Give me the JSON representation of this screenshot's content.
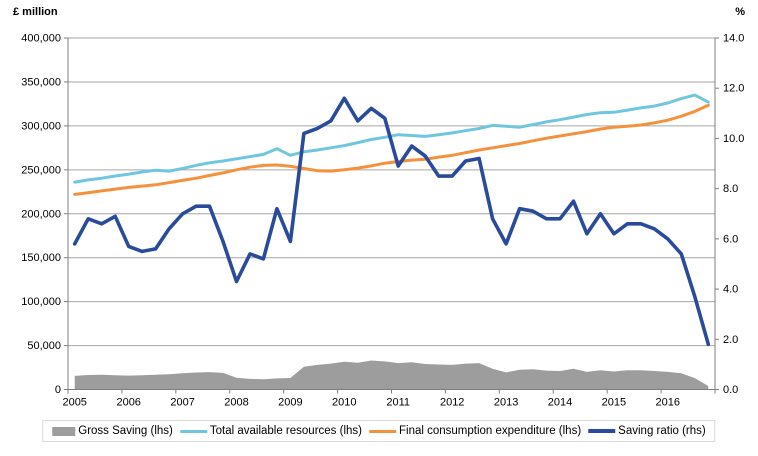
{
  "chart_data": {
    "type": "combo-line-area",
    "title": "",
    "x_axis": {
      "year_labels": [
        "2005",
        "2006",
        "2007",
        "2008",
        "2009",
        "2010",
        "2011",
        "2012",
        "2013",
        "2014",
        "2015",
        "2016"
      ],
      "points_per_year": 4
    },
    "left_axis": {
      "title": "£ million",
      "min": 0,
      "max": 400000,
      "step": 50000,
      "tick_labels": [
        "400,000",
        "350,000",
        "300,000",
        "250,000",
        "200,000",
        "150,000",
        "100,000",
        "50,000",
        "0"
      ]
    },
    "right_axis": {
      "title": "%",
      "min": 0,
      "max": 14,
      "step": 2,
      "tick_labels": [
        "14.0",
        "12.0",
        "10.0",
        "8.0",
        "6.0",
        "4.0",
        "2.0",
        "0.0"
      ]
    },
    "grid": true,
    "legend_position": "bottom",
    "colors": {
      "gridline": "#a6a6a6",
      "axis_line": "#7f7f7f",
      "text": "#000000",
      "legend_border": "#d9d9d9"
    },
    "series": [
      {
        "name": "Gross Saving (lhs)",
        "axis": "left",
        "style": "area",
        "color": "#9d9d9d",
        "values": [
          15500,
          16500,
          16800,
          16300,
          15800,
          16300,
          16800,
          17400,
          18500,
          19400,
          19800,
          18900,
          13400,
          12100,
          11600,
          12600,
          13100,
          26000,
          28000,
          29500,
          31500,
          30500,
          33000,
          32000,
          30000,
          31000,
          29000,
          28500,
          28000,
          29500,
          30000,
          23500,
          19500,
          22500,
          23000,
          21500,
          21000,
          23500,
          20000,
          22000,
          20500,
          22000,
          22000,
          21000,
          20000,
          18500,
          13000,
          4000
        ]
      },
      {
        "name": "Total available resources (lhs)",
        "axis": "left",
        "style": "line",
        "color": "#70c6df",
        "values": [
          236000,
          238500,
          240500,
          243000,
          245000,
          247500,
          249500,
          248500,
          251500,
          255000,
          258000,
          260000,
          262500,
          265000,
          267500,
          274000,
          266500,
          270500,
          272500,
          275000,
          277500,
          281000,
          284500,
          287000,
          290000,
          289000,
          288000,
          290000,
          292000,
          294500,
          297000,
          300500,
          299500,
          298500,
          301500,
          304500,
          307000,
          310000,
          313000,
          315000,
          315500,
          318000,
          320500,
          322500,
          326000,
          331000,
          335000,
          327000
        ]
      },
      {
        "name": "Final consumption expenditure (lhs)",
        "axis": "left",
        "style": "line",
        "color": "#f5913d",
        "values": [
          222000,
          224000,
          226000,
          228000,
          230000,
          231500,
          233000,
          235500,
          238000,
          240500,
          243500,
          246500,
          250000,
          253000,
          255000,
          255500,
          254000,
          251500,
          249000,
          248500,
          250000,
          252000,
          254500,
          257500,
          259500,
          261000,
          262000,
          264500,
          266500,
          269500,
          272500,
          275000,
          277500,
          280000,
          283000,
          286000,
          288500,
          291000,
          293500,
          296500,
          298500,
          299500,
          301000,
          303500,
          306500,
          311000,
          316500,
          323500
        ]
      },
      {
        "name": "Saving ratio (rhs)",
        "axis": "right",
        "style": "line-thick",
        "color": "#2a4b9c",
        "values": [
          5.8,
          6.8,
          6.6,
          6.9,
          5.7,
          5.5,
          5.6,
          6.4,
          7.0,
          7.3,
          7.3,
          5.9,
          4.3,
          5.4,
          5.2,
          7.2,
          5.9,
          10.2,
          10.4,
          10.7,
          11.6,
          10.7,
          11.2,
          10.8,
          8.9,
          9.7,
          9.3,
          8.5,
          8.5,
          9.1,
          9.2,
          6.8,
          5.8,
          7.2,
          7.1,
          6.8,
          6.8,
          7.5,
          6.2,
          7.0,
          6.2,
          6.6,
          6.6,
          6.4,
          6.0,
          5.4,
          3.7,
          1.8
        ]
      }
    ]
  }
}
